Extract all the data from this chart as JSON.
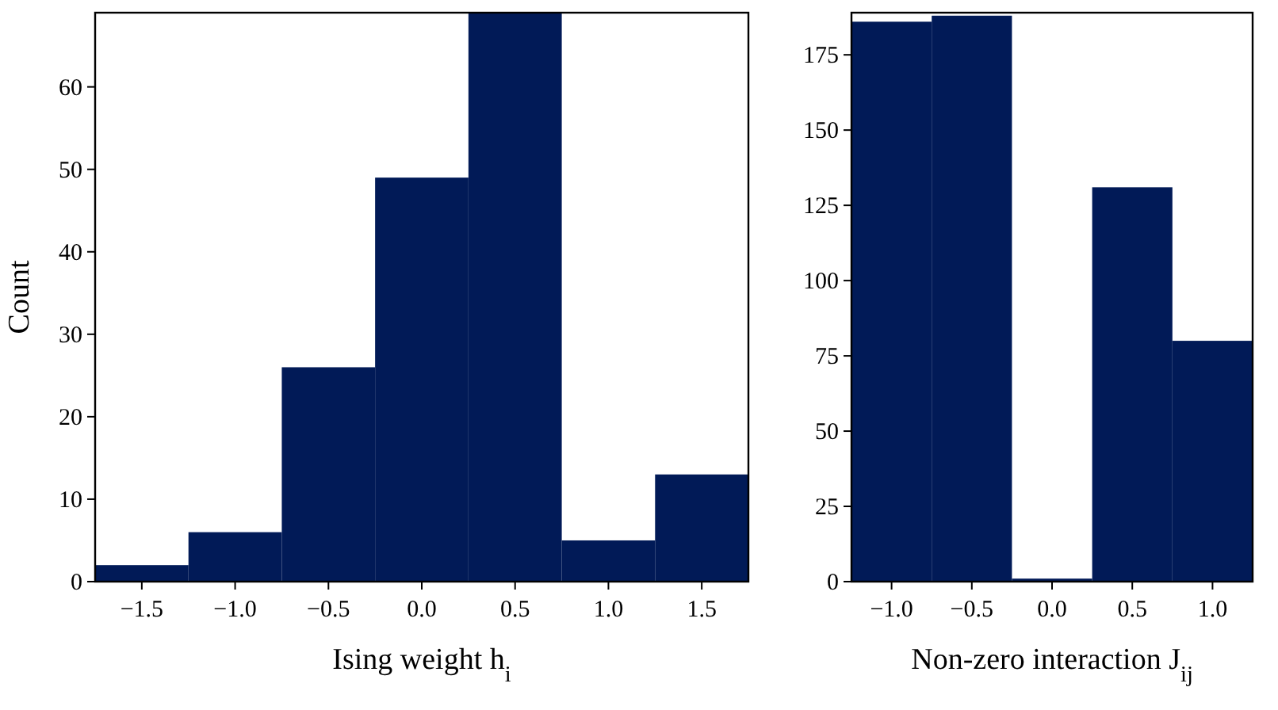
{
  "chart_data": [
    {
      "type": "histogram",
      "xlabel": "Ising weight h$_{i}$",
      "ylabel": "Count",
      "bins": [
        -1.75,
        -1.25,
        -0.75,
        -0.25,
        0.25,
        0.75,
        1.25,
        1.75
      ],
      "values": [
        2,
        6,
        26,
        49,
        69,
        5,
        13
      ],
      "color": "#011a57",
      "xlim": [
        -1.75,
        1.75
      ],
      "ylim": [
        0,
        69
      ],
      "xticks": [
        {
          "value": -1.5,
          "label": "−1.5"
        },
        {
          "value": -1.0,
          "label": "−1.0"
        },
        {
          "value": -0.5,
          "label": "−0.5"
        },
        {
          "value": 0,
          "label": "0.0"
        },
        {
          "value": 0.5,
          "label": "0.5"
        },
        {
          "value": 1.0,
          "label": "1.0"
        },
        {
          "value": 1.5,
          "label": "1.5"
        }
      ],
      "yticks": [
        0,
        10,
        20,
        30,
        40,
        50,
        60
      ],
      "grid": false
    },
    {
      "type": "histogram",
      "xlabel": "Non-zero interaction J$_{ij}$",
      "bins": [
        -1.25,
        -0.75,
        -0.25,
        0.25,
        0.75,
        1.25
      ],
      "values": [
        186,
        188,
        1,
        131,
        80
      ],
      "color": "#011a57",
      "xlim": [
        -1.25,
        1.25
      ],
      "ylim": [
        0,
        189
      ],
      "xticks": [
        {
          "value": -1.0,
          "label": "−1.0"
        },
        {
          "value": -0.5,
          "label": "−0.5"
        },
        {
          "value": 0,
          "label": "0.0"
        },
        {
          "value": 0.5,
          "label": "0.5"
        },
        {
          "value": 1.0,
          "label": "1.0"
        }
      ],
      "yticks": [
        0,
        25,
        50,
        75,
        100,
        125,
        150,
        175
      ],
      "grid": false
    }
  ]
}
